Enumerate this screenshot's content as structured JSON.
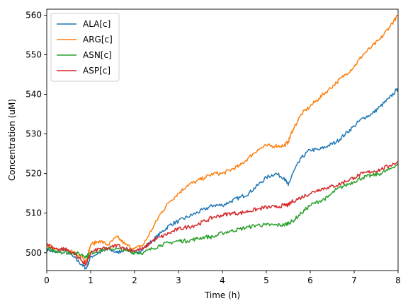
{
  "chart_data": {
    "type": "line",
    "title": "",
    "xlabel": "Time (h)",
    "ylabel": "Concentration (uM)",
    "xlim": [
      0,
      8
    ],
    "ylim": [
      495.5,
      561.5
    ],
    "xticks": [
      0,
      1,
      2,
      3,
      4,
      5,
      6,
      7,
      8
    ],
    "yticks": [
      500,
      510,
      520,
      530,
      540,
      550,
      560
    ],
    "grid": false,
    "legend_position": "upper left",
    "series": [
      {
        "name": "ALA[c]",
        "color": "#1f77b4",
        "x": [
          0,
          0.2,
          0.4,
          0.6,
          0.8,
          0.9,
          1.0,
          1.2,
          1.4,
          1.6,
          1.8,
          2.0,
          2.2,
          2.4,
          2.6,
          2.8,
          3.0,
          3.2,
          3.4,
          3.6,
          3.8,
          4.0,
          4.2,
          4.4,
          4.6,
          4.8,
          5.0,
          5.2,
          5.4,
          5.5,
          5.6,
          5.8,
          6.0,
          6.2,
          6.4,
          6.6,
          6.8,
          7.0,
          7.2,
          7.4,
          7.6,
          7.8,
          8.0
        ],
        "y": [
          501,
          500,
          501,
          499,
          497,
          496,
          499,
          500,
          501,
          500,
          501,
          500,
          501,
          503,
          505,
          507,
          508,
          509,
          510,
          511,
          512,
          512,
          513,
          514,
          515,
          517,
          519,
          520,
          519,
          517,
          520,
          524,
          526,
          526,
          527,
          528,
          530,
          532,
          534,
          535,
          537,
          539,
          541.5
        ]
      },
      {
        "name": "ARG[c]",
        "color": "#ff7f0e",
        "x": [
          0,
          0.2,
          0.4,
          0.6,
          0.8,
          0.9,
          1.0,
          1.2,
          1.4,
          1.6,
          1.8,
          2.0,
          2.2,
          2.4,
          2.6,
          2.8,
          3.0,
          3.2,
          3.4,
          3.6,
          3.8,
          4.0,
          4.2,
          4.4,
          4.6,
          4.8,
          5.0,
          5.2,
          5.4,
          5.5,
          5.6,
          5.8,
          6.0,
          6.2,
          6.4,
          6.6,
          6.8,
          7.0,
          7.2,
          7.4,
          7.6,
          7.8,
          8.0
        ],
        "y": [
          502,
          501,
          501,
          500,
          499,
          498,
          502,
          503,
          502,
          504,
          502,
          501,
          502,
          506,
          510,
          513,
          515,
          517,
          518,
          519,
          520,
          520,
          521,
          522,
          524,
          526,
          527,
          527,
          527,
          528,
          531,
          535,
          537,
          539,
          541,
          543,
          545,
          547,
          550,
          552,
          554,
          557,
          560
        ]
      },
      {
        "name": "ASN[c]",
        "color": "#2ca02c",
        "x": [
          0,
          0.2,
          0.4,
          0.6,
          0.8,
          0.9,
          1.0,
          1.2,
          1.4,
          1.6,
          1.8,
          2.0,
          2.2,
          2.4,
          2.6,
          2.8,
          3.0,
          3.2,
          3.4,
          3.6,
          3.8,
          4.0,
          4.2,
          4.4,
          4.6,
          4.8,
          5.0,
          5.2,
          5.4,
          5.5,
          5.6,
          5.8,
          6.0,
          6.2,
          6.4,
          6.6,
          6.8,
          7.0,
          7.2,
          7.4,
          7.6,
          7.8,
          8.0
        ],
        "y": [
          501,
          500.5,
          500,
          500,
          499.5,
          499,
          500,
          500.5,
          501,
          501,
          500.5,
          500,
          500,
          501,
          502,
          502.5,
          503,
          503,
          503.5,
          504,
          504,
          505,
          505.5,
          506,
          506.5,
          507,
          507,
          507,
          507,
          507.5,
          508,
          510,
          512,
          513,
          514,
          516,
          517,
          518,
          519,
          519.5,
          520,
          521,
          522.5
        ]
      },
      {
        "name": "ASP[c]",
        "color": "#d62728",
        "x": [
          0,
          0.2,
          0.4,
          0.6,
          0.8,
          0.9,
          1.0,
          1.2,
          1.4,
          1.6,
          1.8,
          2.0,
          2.2,
          2.4,
          2.6,
          2.8,
          3.0,
          3.2,
          3.4,
          3.6,
          3.8,
          4.0,
          4.2,
          4.4,
          4.6,
          4.8,
          5.0,
          5.2,
          5.4,
          5.5,
          5.6,
          5.8,
          6.0,
          6.2,
          6.4,
          6.6,
          6.8,
          7.0,
          7.2,
          7.4,
          7.6,
          7.8,
          8.0
        ],
        "y": [
          502,
          501,
          501,
          500,
          498,
          497,
          500,
          501,
          501,
          502,
          501,
          500.5,
          501,
          503,
          504,
          505,
          506,
          506.5,
          507,
          508,
          509,
          509.5,
          510,
          510,
          510.5,
          511,
          511.5,
          511.5,
          512,
          512,
          513,
          514,
          515,
          516,
          516.5,
          517,
          518,
          519,
          520,
          520.5,
          521,
          522,
          523
        ]
      }
    ]
  }
}
